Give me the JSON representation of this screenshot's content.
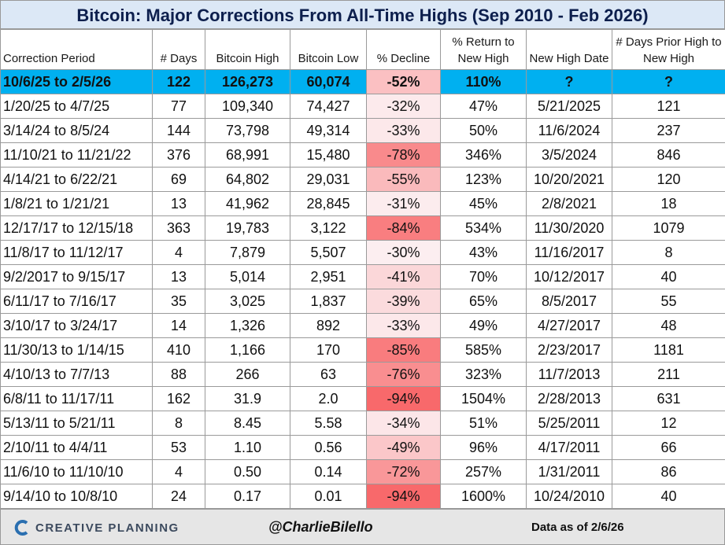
{
  "title": "Bitcoin: Major Corrections From All-Time Highs (Sep 2010 - Feb 2026)",
  "table": {
    "header": [
      "Correction Period",
      "# Days",
      "Bitcoin High",
      "Bitcoin Low",
      "% Decline",
      "% Return to New High",
      "New High Date",
      "# Days Prior High to New High"
    ],
    "rows": [
      [
        "10/6/25 to 2/5/26",
        "122",
        "126,273",
        "60,074",
        "-52%",
        "110%",
        "?",
        "?"
      ],
      [
        "1/20/25 to 4/7/25",
        "77",
        "109,340",
        "74,427",
        "-32%",
        "47%",
        "5/21/2025",
        "121"
      ],
      [
        "3/14/24 to 8/5/24",
        "144",
        "73,798",
        "49,314",
        "-33%",
        "50%",
        "11/6/2024",
        "237"
      ],
      [
        "11/10/21 to 11/21/22",
        "376",
        "68,991",
        "15,480",
        "-78%",
        "346%",
        "3/5/2024",
        "846"
      ],
      [
        "4/14/21 to 6/22/21",
        "69",
        "64,802",
        "29,031",
        "-55%",
        "123%",
        "10/20/2021",
        "120"
      ],
      [
        "1/8/21 to 1/21/21",
        "13",
        "41,962",
        "28,845",
        "-31%",
        "45%",
        "2/8/2021",
        "18"
      ],
      [
        "12/17/17 to 12/15/18",
        "363",
        "19,783",
        "3,122",
        "-84%",
        "534%",
        "11/30/2020",
        "1079"
      ],
      [
        "11/8/17 to 11/12/17",
        "4",
        "7,879",
        "5,507",
        "-30%",
        "43%",
        "11/16/2017",
        "8"
      ],
      [
        "9/2/2017 to 9/15/17",
        "13",
        "5,014",
        "2,951",
        "-41%",
        "70%",
        "10/12/2017",
        "40"
      ],
      [
        "6/11/17 to 7/16/17",
        "35",
        "3,025",
        "1,837",
        "-39%",
        "65%",
        "8/5/2017",
        "55"
      ],
      [
        "3/10/17 to 3/24/17",
        "14",
        "1,326",
        "892",
        "-33%",
        "49%",
        "4/27/2017",
        "48"
      ],
      [
        "11/30/13 to 1/14/15",
        "410",
        "1,166",
        "170",
        "-85%",
        "585%",
        "2/23/2017",
        "1181"
      ],
      [
        "4/10/13 to 7/7/13",
        "88",
        "266",
        "63",
        "-76%",
        "323%",
        "11/7/2013",
        "211"
      ],
      [
        "6/8/11 to 11/17/11",
        "162",
        "31.9",
        "2.0",
        "-94%",
        "1504%",
        "2/28/2013",
        "631"
      ],
      [
        "5/13/11 to 5/21/11",
        "8",
        "8.45",
        "5.58",
        "-34%",
        "51%",
        "5/25/2011",
        "12"
      ],
      [
        "2/10/11 to 4/4/11",
        "53",
        "1.10",
        "0.56",
        "-49%",
        "96%",
        "4/17/2011",
        "66"
      ],
      [
        "11/6/10 to 11/10/10",
        "4",
        "0.50",
        "0.14",
        "-72%",
        "257%",
        "1/31/2011",
        "86"
      ],
      [
        "9/14/10 to 10/8/10",
        "24",
        "0.17",
        "0.01",
        "-94%",
        "1600%",
        "10/24/2010",
        "40"
      ]
    ]
  },
  "footer": {
    "brand": "CREATIVE PLANNING",
    "handle": "@CharlieBilello",
    "note": "Data as of 2/6/26"
  }
}
